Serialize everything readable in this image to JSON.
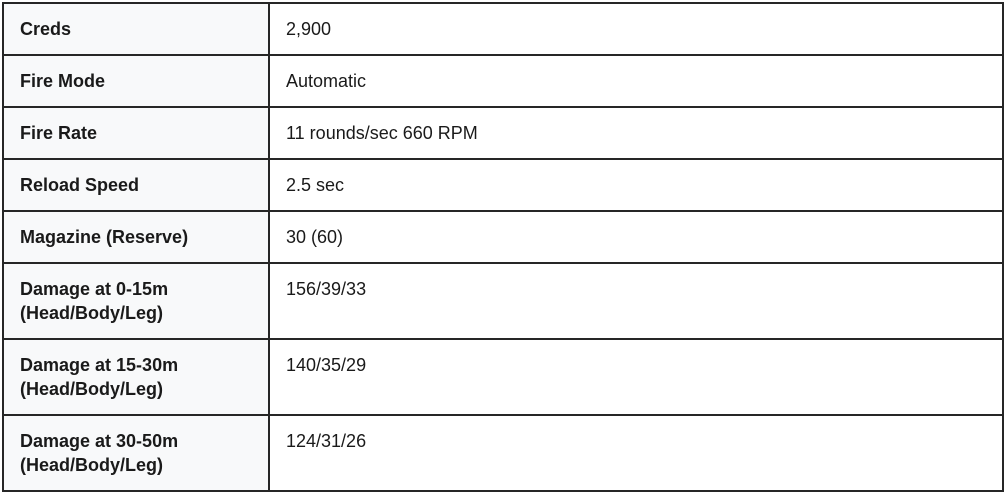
{
  "table": {
    "rows": [
      {
        "label": "Creds",
        "value": "2,900"
      },
      {
        "label": "Fire Mode",
        "value": "Automatic"
      },
      {
        "label": "Fire Rate",
        "value": "11 rounds/sec 660 RPM"
      },
      {
        "label": "Reload Speed",
        "value": "2.5 sec"
      },
      {
        "label": "Magazine (Reserve)",
        "value": "30 (60)"
      },
      {
        "label": "Damage at 0-15m (Head/Body/Leg)",
        "value": "156/39/33"
      },
      {
        "label": "Damage at 15-30m (Head/Body/Leg)",
        "value": "140/35/29"
      },
      {
        "label": "Damage at 30-50m (Head/Body/Leg)",
        "value": "124/31/26"
      }
    ]
  },
  "colors": {
    "label_column_bg": "#f8f9fa",
    "value_column_bg": "#ffffff",
    "border": "#262626",
    "text": "#1a1a1a"
  }
}
